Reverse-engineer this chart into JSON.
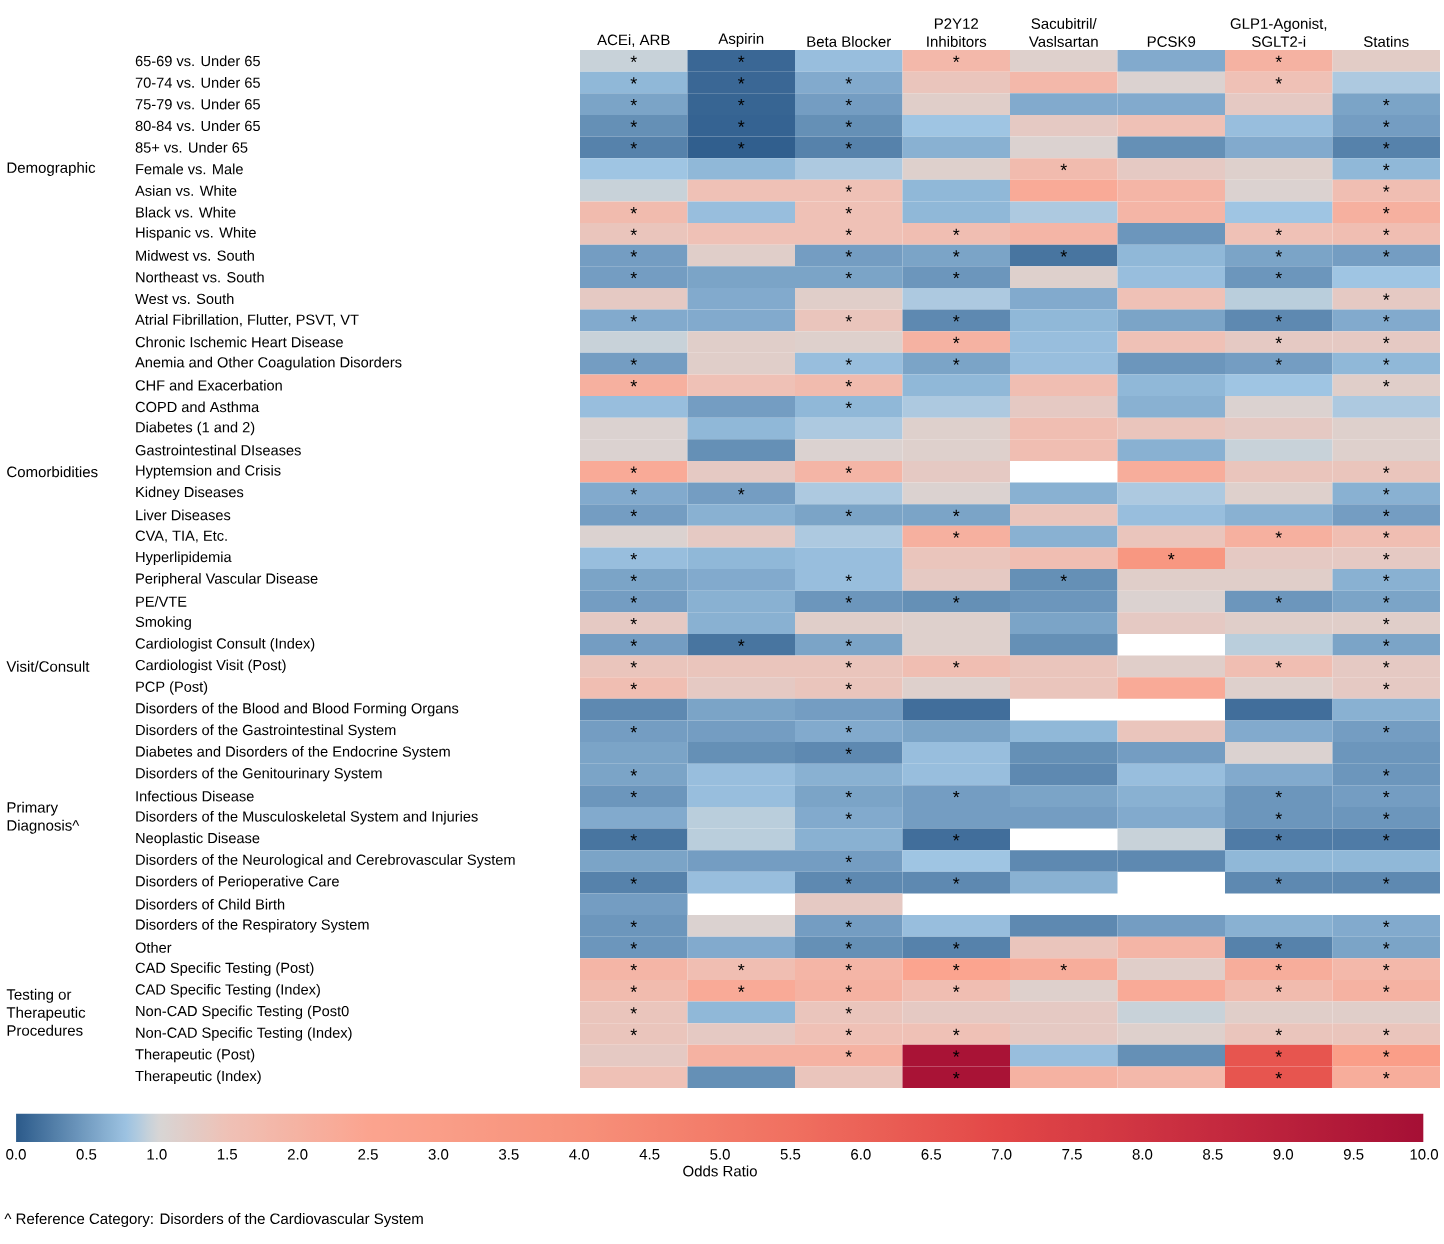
{
  "chart_data": {
    "type": "heatmap",
    "categories": [
      "ACEi, ARB",
      "Aspirin",
      "Beta Blocker",
      "P2Y12 Inhibitors",
      "Sacubitril/ Vaslsartan",
      "PCSK9",
      "GLP1-Agonist, SGLT2-i",
      "Statins"
    ],
    "y_categories": [
      "65-69 vs. Under 65",
      "70-74 vs. Under 65",
      "75-79 vs. Under 65",
      "80-84 vs. Under 65",
      "85+ vs. Under 65",
      "Female vs. Male",
      "Asian vs. White",
      "Black vs. White",
      "Hispanic vs. White",
      "Midwest vs. South",
      "Northeast vs. South",
      "West vs. South",
      "Atrial Fibrillation, Flutter, PSVT, VT",
      "Chronic Ischemic Heart Disease",
      "Anemia and Other Coagulation Disorders",
      "CHF and Exacerbation",
      "COPD and Asthma",
      "Diabetes (1 and 2)",
      "Gastrointestinal DIseases",
      "Hyptemsion and Crisis",
      "Kidney Diseases",
      "Liver Diseases",
      "CVA, TIA, Etc.",
      "Hyperlipidemia",
      "Peripheral Vascular Disease",
      "PE/VTE",
      "Smoking",
      "Cardiologist Consult (Index)",
      "Cardiologist Visit (Post)",
      "PCP (Post)",
      "Disorders of the Blood and Blood Forming Organs",
      "Disorders of the Gastrointestinal System",
      "Diabetes and Disorders of the Endocrine System",
      "Disorders of the Genitourinary System",
      "Infectious Disease",
      "Disorders of the Musculoskeletal System and Injuries",
      "Neoplastic Disease",
      "Disorders of the Neurological and Cerebrovascular System",
      "Disorders of Perioperative Care",
      "Disorders of Child Birth",
      "Disorders of the Respiratory System",
      "Other",
      "CAD Specific Testing (Post)",
      "CAD Specific Testing (Index)",
      "Non-CAD Specific Testing (Post0",
      "Non-CAD Specific Testing (Index)",
      "Therapeutic (Post)",
      "Therapeutic (Index)"
    ],
    "y2_categories": [
      null,
      null,
      null,
      null,
      null,
      "Demographic",
      null,
      null,
      null,
      null,
      null,
      null,
      null,
      null,
      null,
      null,
      null,
      null,
      null,
      "Comorbidities",
      null,
      null,
      null,
      null,
      null,
      null,
      null,
      null,
      "Visit/Consult",
      null,
      null,
      null,
      null,
      null,
      null,
      "Primary Diagnosis^",
      null,
      null,
      null,
      null,
      null,
      null,
      null,
      null,
      "Testing or Therapeutic Procedures",
      null,
      null,
      null
    ],
    "cells": [
      [
        0.95,
        0.1,
        0.75,
        1.8,
        1.15,
        0.6,
        2.0,
        1.25
      ],
      [
        0.7,
        0.1,
        0.6,
        1.4,
        1.8,
        1.1,
        1.5,
        0.85
      ],
      [
        0.55,
        0.08,
        0.5,
        1.2,
        0.6,
        0.6,
        1.3,
        0.55
      ],
      [
        0.4,
        0.07,
        0.4,
        0.8,
        1.3,
        1.5,
        0.75,
        0.5
      ],
      [
        0.3,
        0.04,
        0.3,
        0.65,
        1.1,
        0.4,
        0.6,
        0.3
      ],
      [
        0.8,
        0.7,
        0.85,
        1.15,
        1.7,
        1.3,
        1.15,
        0.7
      ],
      [
        0.95,
        1.5,
        1.5,
        0.7,
        2.3,
        1.9,
        1.1,
        1.6
      ],
      [
        1.7,
        0.75,
        1.5,
        0.7,
        0.85,
        1.9,
        0.8,
        2.1
      ],
      [
        1.4,
        1.5,
        1.5,
        1.6,
        1.9,
        0.45,
        1.5,
        1.6
      ],
      [
        0.5,
        1.2,
        0.5,
        0.55,
        0.2,
        0.7,
        0.55,
        0.5
      ],
      [
        0.5,
        0.55,
        0.55,
        0.45,
        1.15,
        0.75,
        0.45,
        0.8
      ],
      [
        1.3,
        0.6,
        1.2,
        0.85,
        0.6,
        1.5,
        0.9,
        1.3
      ],
      [
        0.6,
        0.6,
        1.4,
        0.35,
        0.7,
        0.55,
        0.35,
        0.6
      ],
      [
        0.95,
        1.2,
        1.15,
        2.0,
        0.75,
        1.5,
        1.3,
        1.3
      ],
      [
        0.5,
        1.2,
        0.75,
        0.55,
        0.75,
        0.45,
        0.5,
        0.7
      ],
      [
        2.1,
        1.5,
        1.7,
        0.7,
        1.6,
        0.7,
        0.8,
        1.2
      ],
      [
        0.75,
        0.5,
        0.7,
        0.85,
        1.3,
        0.65,
        1.1,
        0.85
      ],
      [
        1.1,
        0.7,
        0.85,
        1.15,
        1.6,
        1.4,
        1.3,
        1.15
      ],
      [
        1.1,
        0.4,
        1.1,
        1.15,
        1.6,
        0.65,
        0.95,
        1.15
      ],
      [
        2.3,
        1.3,
        1.9,
        1.3,
        null,
        2.2,
        1.4,
        1.4
      ],
      [
        0.6,
        0.5,
        0.85,
        1.1,
        0.65,
        0.85,
        1.15,
        0.65
      ],
      [
        0.5,
        0.65,
        0.55,
        0.55,
        1.4,
        0.75,
        0.65,
        0.5
      ],
      [
        1.1,
        1.3,
        0.85,
        2.1,
        0.65,
        1.4,
        2.1,
        1.6
      ],
      [
        0.75,
        0.7,
        0.75,
        1.4,
        1.6,
        3.5,
        1.3,
        1.3
      ],
      [
        0.55,
        0.6,
        0.75,
        1.3,
        0.4,
        1.2,
        1.2,
        0.65
      ],
      [
        0.5,
        0.65,
        0.45,
        0.4,
        0.45,
        1.1,
        0.45,
        0.55
      ],
      [
        1.3,
        0.65,
        1.2,
        1.15,
        0.55,
        1.3,
        1.2,
        1.2
      ],
      [
        0.5,
        0.2,
        0.55,
        1.15,
        0.4,
        null,
        0.9,
        0.55
      ],
      [
        1.4,
        1.4,
        1.4,
        1.6,
        1.4,
        1.2,
        1.6,
        1.3
      ],
      [
        1.6,
        1.3,
        1.4,
        1.15,
        1.4,
        2.3,
        1.15,
        1.3
      ],
      [
        0.35,
        0.55,
        0.5,
        0.15,
        null,
        null,
        0.15,
        0.65
      ],
      [
        0.5,
        0.5,
        0.6,
        0.55,
        0.7,
        1.4,
        0.6,
        0.5
      ],
      [
        0.55,
        0.4,
        0.35,
        0.75,
        0.4,
        0.5,
        1.1,
        0.45
      ],
      [
        0.55,
        0.75,
        0.65,
        0.75,
        0.35,
        0.75,
        0.6,
        0.45
      ],
      [
        0.45,
        0.75,
        0.55,
        0.5,
        0.55,
        0.65,
        0.45,
        0.5
      ],
      [
        0.6,
        0.9,
        0.6,
        0.5,
        0.5,
        0.6,
        0.45,
        0.45
      ],
      [
        0.2,
        0.9,
        0.65,
        0.15,
        null,
        0.95,
        0.25,
        0.25
      ],
      [
        0.55,
        0.5,
        0.5,
        0.8,
        0.35,
        0.35,
        0.7,
        0.7
      ],
      [
        0.3,
        0.75,
        0.35,
        0.35,
        0.65,
        null,
        0.35,
        0.35
      ],
      [
        0.5,
        null,
        1.3,
        null,
        null,
        null,
        null,
        null
      ],
      [
        0.45,
        1.1,
        0.5,
        0.75,
        0.35,
        0.5,
        0.65,
        0.6
      ],
      [
        0.45,
        0.6,
        0.4,
        0.3,
        1.4,
        1.9,
        0.3,
        0.55
      ],
      [
        1.9,
        1.6,
        1.9,
        2.5,
        2.2,
        1.2,
        2.2,
        1.8
      ],
      [
        1.7,
        2.3,
        2.0,
        1.6,
        1.15,
        2.3,
        1.7,
        2.0
      ],
      [
        1.4,
        0.7,
        1.4,
        1.3,
        1.3,
        0.95,
        1.2,
        1.2
      ],
      [
        1.4,
        1.3,
        1.5,
        1.5,
        1.3,
        1.15,
        1.4,
        1.4
      ],
      [
        1.3,
        2.0,
        2.0,
        9.8,
        0.75,
        0.4,
        6.5,
        3.0
      ],
      [
        1.5,
        0.4,
        1.4,
        9.8,
        2.0,
        1.8,
        6.5,
        2.2
      ]
    ],
    "cell_labels": [
      [
        "*",
        "*",
        null,
        "*",
        null,
        null,
        "*",
        null
      ],
      [
        "*",
        "*",
        "*",
        null,
        null,
        null,
        "*",
        null
      ],
      [
        "*",
        "*",
        "*",
        null,
        null,
        null,
        null,
        "*"
      ],
      [
        "*",
        "*",
        "*",
        null,
        null,
        null,
        null,
        "*"
      ],
      [
        "*",
        "*",
        "*",
        null,
        null,
        null,
        null,
        "*"
      ],
      [
        null,
        null,
        null,
        null,
        "*",
        null,
        null,
        "*"
      ],
      [
        null,
        null,
        "*",
        null,
        null,
        null,
        null,
        "*"
      ],
      [
        "*",
        null,
        "*",
        null,
        null,
        null,
        null,
        "*"
      ],
      [
        "*",
        null,
        "*",
        "*",
        null,
        null,
        "*",
        "*"
      ],
      [
        "*",
        null,
        "*",
        "*",
        "*",
        null,
        "*",
        "*"
      ],
      [
        "*",
        null,
        "*",
        "*",
        null,
        null,
        "*",
        null
      ],
      [
        null,
        null,
        null,
        null,
        null,
        null,
        null,
        "*"
      ],
      [
        "*",
        null,
        "*",
        "*",
        null,
        null,
        "*",
        "*"
      ],
      [
        null,
        null,
        null,
        "*",
        null,
        null,
        "*",
        "*"
      ],
      [
        "*",
        null,
        "*",
        "*",
        null,
        null,
        "*",
        "*"
      ],
      [
        "*",
        null,
        "*",
        null,
        null,
        null,
        null,
        "*"
      ],
      [
        null,
        null,
        "*",
        null,
        null,
        null,
        null,
        null
      ],
      [
        null,
        null,
        null,
        null,
        null,
        null,
        null,
        null
      ],
      [
        null,
        null,
        null,
        null,
        null,
        null,
        null,
        null
      ],
      [
        "*",
        null,
        "*",
        null,
        null,
        null,
        null,
        "*"
      ],
      [
        "*",
        "*",
        null,
        null,
        null,
        null,
        null,
        "*"
      ],
      [
        "*",
        null,
        "*",
        "*",
        null,
        null,
        null,
        "*"
      ],
      [
        null,
        null,
        null,
        "*",
        null,
        null,
        "*",
        "*"
      ],
      [
        "*",
        null,
        null,
        null,
        null,
        "*",
        null,
        "*"
      ],
      [
        "*",
        null,
        "*",
        null,
        "*",
        null,
        null,
        "*"
      ],
      [
        "*",
        null,
        "*",
        "*",
        null,
        null,
        "*",
        "*"
      ],
      [
        "*",
        null,
        null,
        null,
        null,
        null,
        null,
        "*"
      ],
      [
        "*",
        "*",
        "*",
        null,
        null,
        null,
        null,
        "*"
      ],
      [
        "*",
        null,
        "*",
        "*",
        null,
        null,
        "*",
        "*"
      ],
      [
        "*",
        null,
        "*",
        null,
        null,
        null,
        null,
        "*"
      ],
      [
        null,
        null,
        null,
        null,
        null,
        null,
        null,
        null
      ],
      [
        "*",
        null,
        "*",
        null,
        null,
        null,
        null,
        "*"
      ],
      [
        null,
        null,
        "*",
        null,
        null,
        null,
        null,
        null
      ],
      [
        "*",
        null,
        null,
        null,
        null,
        null,
        null,
        "*"
      ],
      [
        "*",
        null,
        "*",
        "*",
        null,
        null,
        "*",
        "*"
      ],
      [
        null,
        null,
        "*",
        null,
        null,
        null,
        "*",
        "*"
      ],
      [
        "*",
        null,
        null,
        "*",
        null,
        null,
        "*",
        "*"
      ],
      [
        null,
        null,
        "*",
        null,
        null,
        null,
        null,
        null
      ],
      [
        "*",
        null,
        "*",
        "*",
        null,
        null,
        "*",
        "*"
      ],
      [
        null,
        null,
        null,
        null,
        null,
        null,
        null,
        null
      ],
      [
        "*",
        null,
        "*",
        null,
        null,
        null,
        null,
        "*"
      ],
      [
        "*",
        null,
        "*",
        "*",
        null,
        null,
        "*",
        "*"
      ],
      [
        "*",
        "*",
        "*",
        "*",
        "*",
        null,
        "*",
        "*"
      ],
      [
        "*",
        "*",
        "*",
        "*",
        null,
        null,
        "*",
        "*"
      ],
      [
        "*",
        null,
        "*",
        null,
        null,
        null,
        null,
        null
      ],
      [
        "*",
        null,
        "*",
        "*",
        null,
        null,
        "*",
        "*"
      ],
      [
        null,
        null,
        "*",
        "*",
        null,
        null,
        "*",
        "*"
      ],
      [
        null,
        null,
        null,
        "*",
        null,
        null,
        "*",
        "*"
      ]
    ],
    "clim": [
      0,
      10
    ],
    "cticks": [
      {
        "value": 0,
        "label": "0.0"
      },
      {
        "value": 0.5,
        "label": "0.5"
      },
      {
        "value": 1,
        "label": "1.0"
      },
      {
        "value": 1.5,
        "label": "1.5"
      },
      {
        "value": 2,
        "label": "2.0"
      },
      {
        "value": 2.5,
        "label": "2.5"
      },
      {
        "value": 3,
        "label": "3.0"
      },
      {
        "value": 3.5,
        "label": "3.5"
      },
      {
        "value": 4,
        "label": "4.0"
      },
      {
        "value": 4.5,
        "label": "4.5"
      },
      {
        "value": 5,
        "label": "5.0"
      },
      {
        "value": 5.5,
        "label": "5.5"
      },
      {
        "value": 6,
        "label": "6.0"
      },
      {
        "value": 6.5,
        "label": "6.5"
      },
      {
        "value": 7,
        "label": "7.0"
      },
      {
        "value": 7.5,
        "label": "7.5"
      },
      {
        "value": 8,
        "label": "8.0"
      },
      {
        "value": 8.5,
        "label": "8.5"
      },
      {
        "value": 9,
        "label": "9.0"
      },
      {
        "value": 9.5,
        "label": "9.5"
      },
      {
        "value": 10,
        "label": "10.0"
      }
    ],
    "clabel": "Odds Ratio",
    "annotations": [
      "^ Reference Category: Disorders of the Cardiovascular System"
    ]
  }
}
